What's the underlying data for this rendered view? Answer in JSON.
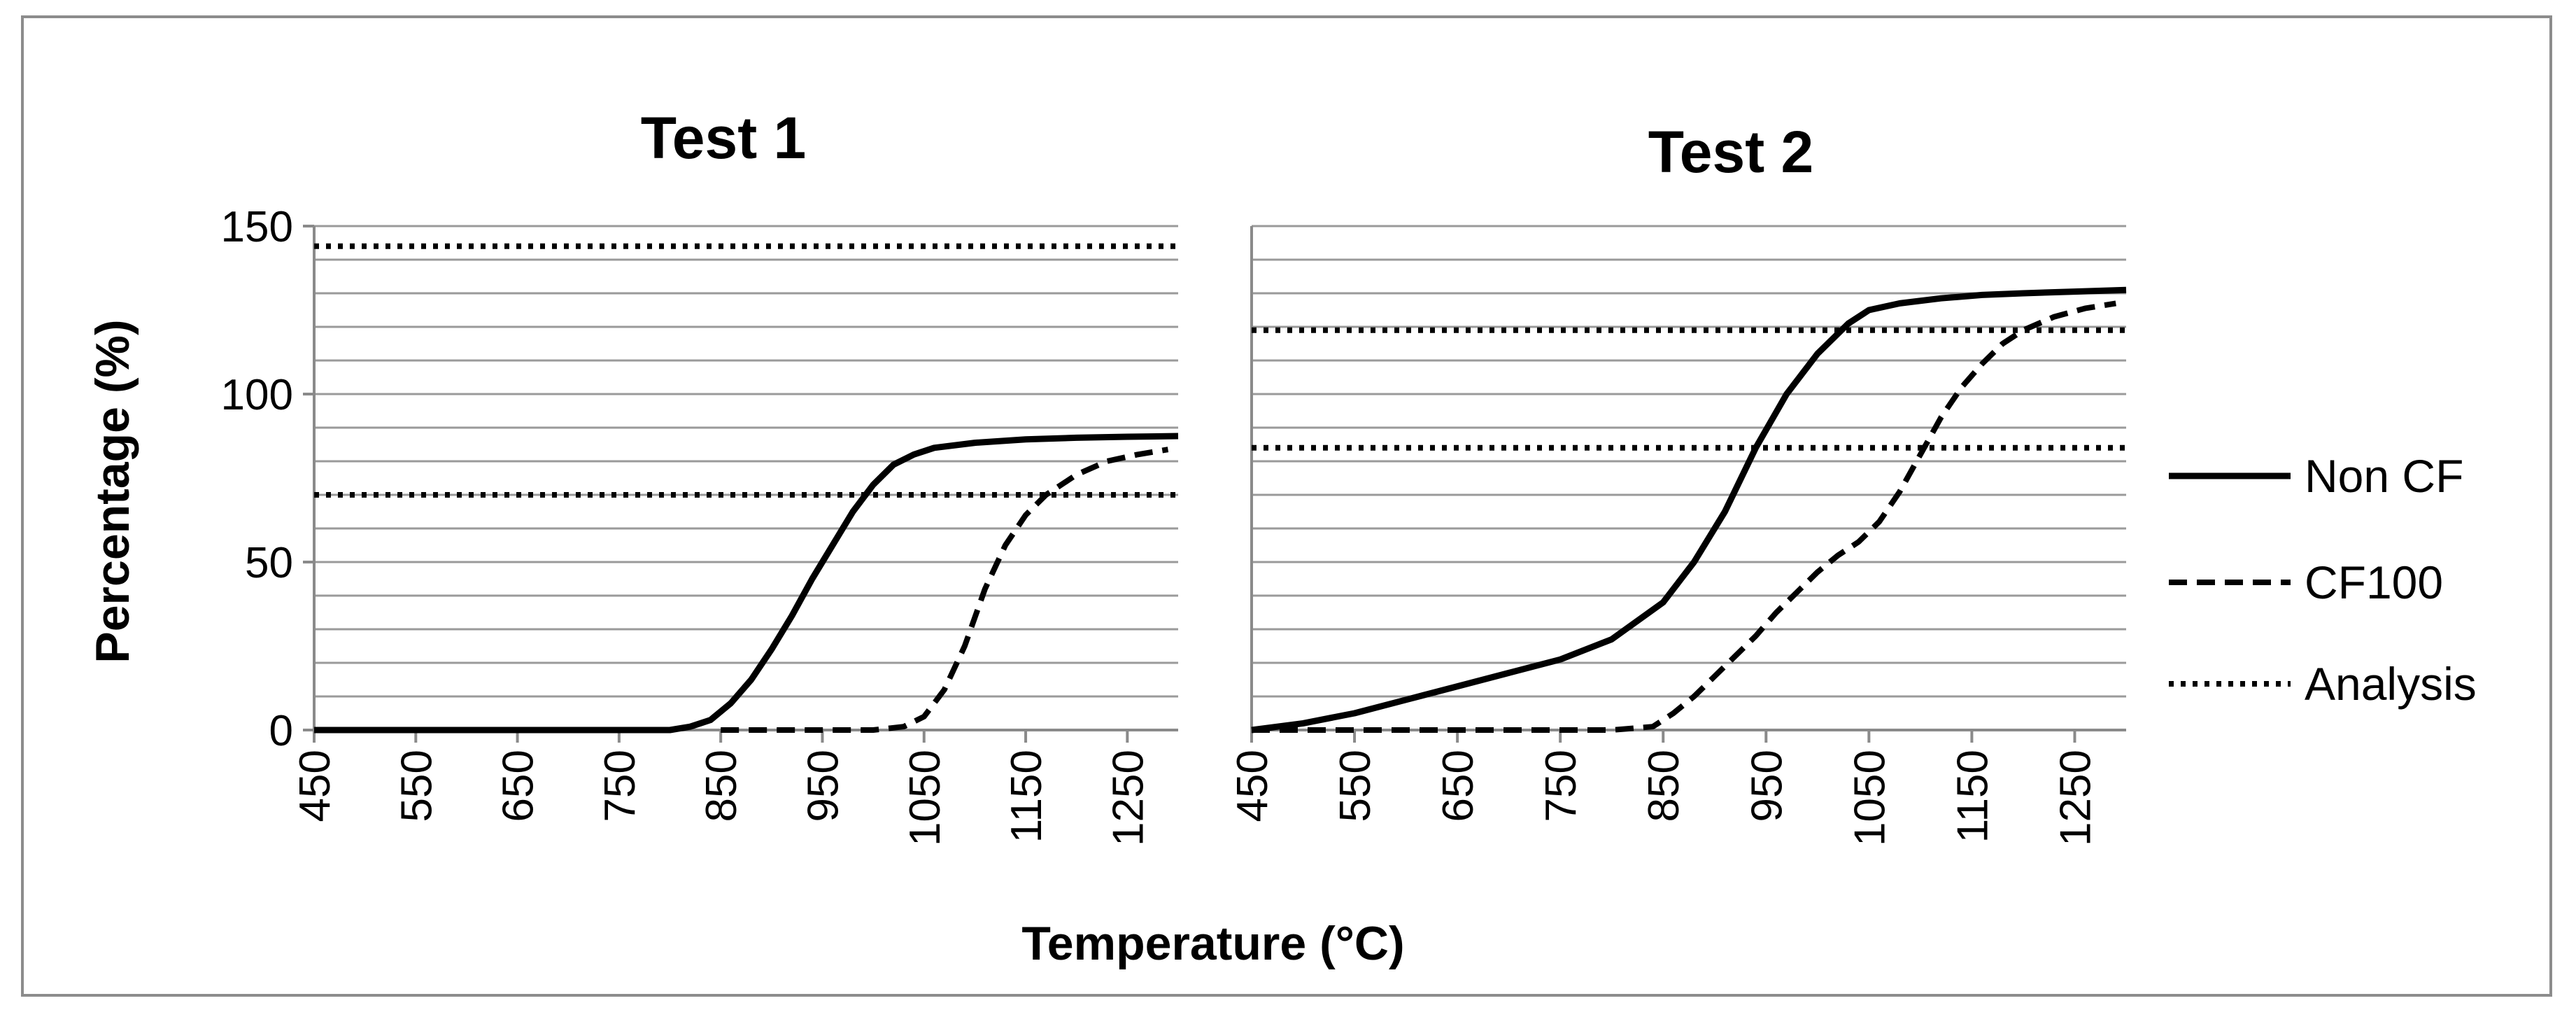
{
  "chart_data": [
    {
      "type": "line",
      "title": "Test 1",
      "xlabel": "Temperature (°C)",
      "ylabel": "Percentage (%)",
      "xlim": [
        450,
        1300
      ],
      "ylim": [
        0,
        150
      ],
      "x_ticks": [
        "450",
        "550",
        "650",
        "750",
        "850",
        "950",
        "1050",
        "1150",
        "1250"
      ],
      "y_ticks": [
        "0",
        "50",
        "100",
        "150"
      ],
      "y_minor_grid_step": 10,
      "series": [
        {
          "name": "Non CF",
          "style": "solid",
          "x": [
            450,
            700,
            800,
            820,
            840,
            860,
            880,
            900,
            920,
            940,
            960,
            980,
            1000,
            1020,
            1040,
            1060,
            1100,
            1150,
            1200,
            1250,
            1300
          ],
          "y": [
            0,
            0,
            0,
            1,
            3,
            8,
            15,
            24,
            34,
            45,
            55,
            65,
            73,
            79,
            82,
            84,
            85.5,
            86.5,
            87,
            87.3,
            87.5
          ]
        },
        {
          "name": "CF100",
          "style": "dashed",
          "x": [
            850,
            1000,
            1030,
            1050,
            1070,
            1090,
            1110,
            1130,
            1150,
            1170,
            1200,
            1230,
            1260,
            1290
          ],
          "y": [
            0,
            0,
            1,
            4,
            12,
            25,
            42,
            55,
            64,
            70,
            76,
            80,
            82,
            83.5
          ]
        },
        {
          "name": "Analysis",
          "style": "dotted",
          "x": [
            450,
            1300
          ],
          "y": [
            144,
            144
          ]
        },
        {
          "name": "Analysis",
          "style": "dotted",
          "x": [
            450,
            1300
          ],
          "y": [
            70,
            70
          ]
        }
      ]
    },
    {
      "type": "line",
      "title": "Test 2",
      "xlabel": "Temperature (°C)",
      "ylabel": "Percentage (%)",
      "xlim": [
        450,
        1300
      ],
      "ylim": [
        0,
        150
      ],
      "x_ticks": [
        "450",
        "550",
        "650",
        "750",
        "850",
        "950",
        "1050",
        "1150",
        "1250"
      ],
      "y_ticks": [
        "0",
        "50",
        "100",
        "150"
      ],
      "y_minor_grid_step": 10,
      "series": [
        {
          "name": "Non CF",
          "style": "solid",
          "x": [
            450,
            500,
            550,
            600,
            650,
            700,
            750,
            800,
            850,
            880,
            910,
            940,
            970,
            1000,
            1030,
            1050,
            1080,
            1120,
            1160,
            1200,
            1250,
            1300
          ],
          "y": [
            0,
            2,
            5,
            9,
            13,
            17,
            21,
            27,
            38,
            50,
            65,
            84,
            100,
            112,
            121,
            125,
            127,
            128.5,
            129.5,
            130,
            130.5,
            131
          ]
        },
        {
          "name": "CF100",
          "style": "dashed",
          "x": [
            450,
            800,
            840,
            860,
            880,
            900,
            920,
            940,
            960,
            980,
            1000,
            1020,
            1040,
            1060,
            1080,
            1100,
            1120,
            1140,
            1160,
            1180,
            1200,
            1230,
            1260,
            1290
          ],
          "y": [
            0,
            0,
            1,
            5,
            10,
            16,
            22,
            28,
            35,
            41,
            47,
            52,
            56,
            62,
            71,
            82,
            93,
            102,
            109,
            115,
            119,
            123,
            125.5,
            127
          ]
        },
        {
          "name": "Analysis",
          "style": "dotted",
          "x": [
            450,
            1300
          ],
          "y": [
            119,
            119
          ]
        },
        {
          "name": "Analysis",
          "style": "dotted",
          "x": [
            450,
            1300
          ],
          "y": [
            84,
            84
          ]
        }
      ]
    }
  ],
  "legend": {
    "position": "right",
    "items": [
      {
        "label": "Non CF",
        "style": "solid"
      },
      {
        "label": "CF100",
        "style": "dashed"
      },
      {
        "label": "Analysis",
        "style": "dotted"
      }
    ]
  }
}
